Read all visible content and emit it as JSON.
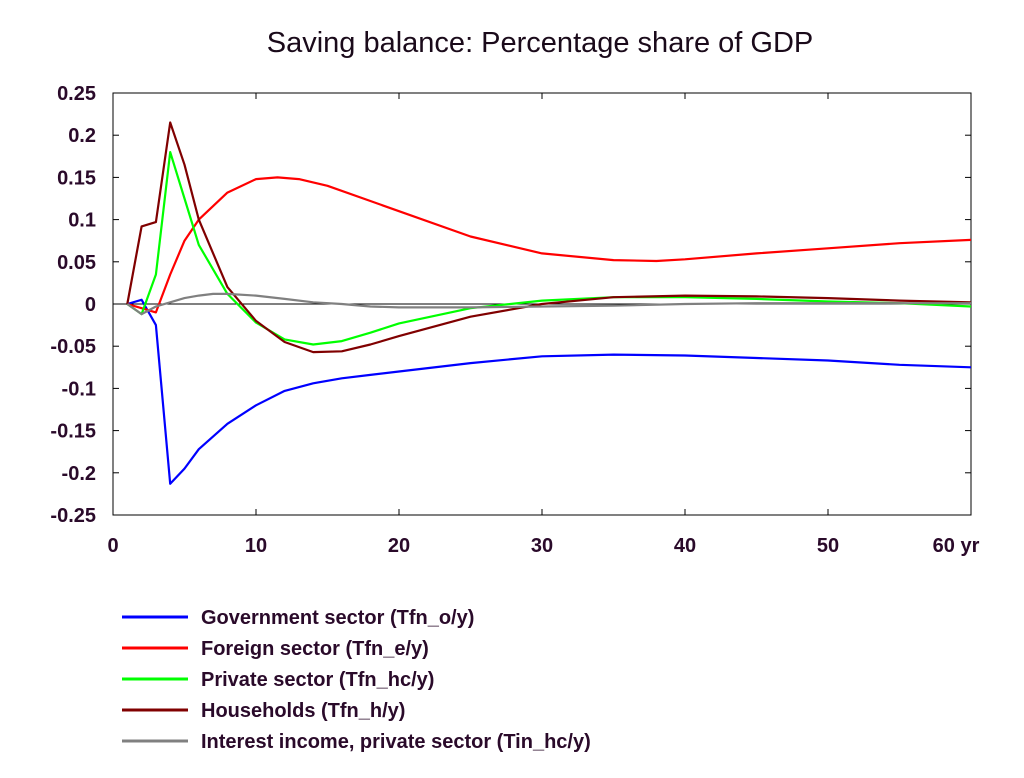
{
  "chart_data": {
    "type": "line",
    "title": "Saving balance: Percentage share of GDP",
    "xlabel": "",
    "ylabel": "",
    "x_unit_label": "yr",
    "xlim": [
      0,
      60
    ],
    "ylim": [
      -0.25,
      0.25
    ],
    "x_ticks": [
      0,
      10,
      20,
      30,
      40,
      50,
      60
    ],
    "x_tick_labels": [
      "0",
      "10",
      "20",
      "30",
      "40",
      "50",
      "60 yr"
    ],
    "y_ticks": [
      0.25,
      0.2,
      0.15,
      0.1,
      0.05,
      0,
      -0.05,
      -0.1,
      -0.15,
      -0.2,
      -0.25
    ],
    "y_tick_labels": [
      "0.25",
      "0.2",
      "0.15",
      "0.1",
      "0.05",
      "0",
      "-0.05",
      "-0.1",
      "-0.15",
      "-0.2",
      "-0.25"
    ],
    "grid": false,
    "zero_line": true,
    "legend_position": "bottom",
    "series": [
      {
        "name": "Government sector (Tfn_o/y)",
        "color": "#0000ff",
        "points": [
          [
            1,
            0
          ],
          [
            2,
            0.005
          ],
          [
            3,
            -0.025
          ],
          [
            4,
            -0.213
          ],
          [
            5,
            -0.195
          ],
          [
            6,
            -0.172
          ],
          [
            8,
            -0.142
          ],
          [
            10,
            -0.12
          ],
          [
            12,
            -0.103
          ],
          [
            14,
            -0.094
          ],
          [
            16,
            -0.088
          ],
          [
            18,
            -0.084
          ],
          [
            20,
            -0.08
          ],
          [
            25,
            -0.07
          ],
          [
            30,
            -0.062
          ],
          [
            35,
            -0.06
          ],
          [
            40,
            -0.061
          ],
          [
            45,
            -0.064
          ],
          [
            50,
            -0.067
          ],
          [
            55,
            -0.072
          ],
          [
            60,
            -0.075
          ]
        ]
      },
      {
        "name": "Foreign sector (Tfn_e/y)",
        "color": "#ff0000",
        "points": [
          [
            1,
            0
          ],
          [
            2,
            -0.005
          ],
          [
            3,
            -0.01
          ],
          [
            4,
            0.035
          ],
          [
            5,
            0.075
          ],
          [
            6,
            0.1
          ],
          [
            8,
            0.132
          ],
          [
            10,
            0.148
          ],
          [
            11.5,
            0.15
          ],
          [
            13,
            0.148
          ],
          [
            15,
            0.14
          ],
          [
            18,
            0.122
          ],
          [
            20,
            0.11
          ],
          [
            25,
            0.08
          ],
          [
            30,
            0.06
          ],
          [
            35,
            0.052
          ],
          [
            38,
            0.051
          ],
          [
            40,
            0.053
          ],
          [
            45,
            0.06
          ],
          [
            50,
            0.066
          ],
          [
            55,
            0.072
          ],
          [
            60,
            0.076
          ]
        ]
      },
      {
        "name": "Private sector (Tfn_hc/y)",
        "color": "#00ff00",
        "points": [
          [
            1,
            0
          ],
          [
            2,
            -0.012
          ],
          [
            3,
            0.035
          ],
          [
            4,
            0.18
          ],
          [
            5,
            0.125
          ],
          [
            6,
            0.07
          ],
          [
            8,
            0.012
          ],
          [
            10,
            -0.022
          ],
          [
            12,
            -0.042
          ],
          [
            14,
            -0.048
          ],
          [
            16,
            -0.044
          ],
          [
            18,
            -0.034
          ],
          [
            20,
            -0.023
          ],
          [
            25,
            -0.005
          ],
          [
            30,
            0.004
          ],
          [
            35,
            0.008
          ],
          [
            40,
            0.008
          ],
          [
            45,
            0.006
          ],
          [
            50,
            0.003
          ],
          [
            55,
            0.001
          ],
          [
            60,
            -0.003
          ]
        ]
      },
      {
        "name": "Households (Tfn_h/y)",
        "color": "#800000",
        "points": [
          [
            1,
            0
          ],
          [
            2,
            0.092
          ],
          [
            3,
            0.097
          ],
          [
            4,
            0.215
          ],
          [
            5,
            0.165
          ],
          [
            6,
            0.1
          ],
          [
            8,
            0.02
          ],
          [
            10,
            -0.02
          ],
          [
            12,
            -0.045
          ],
          [
            14,
            -0.057
          ],
          [
            16,
            -0.056
          ],
          [
            18,
            -0.048
          ],
          [
            20,
            -0.038
          ],
          [
            25,
            -0.015
          ],
          [
            30,
            0
          ],
          [
            35,
            0.008
          ],
          [
            40,
            0.01
          ],
          [
            45,
            0.009
          ],
          [
            50,
            0.007
          ],
          [
            55,
            0.004
          ],
          [
            60,
            0.002
          ]
        ]
      },
      {
        "name": "Interest income, private sector (Tin_hc/y)",
        "color": "#808080",
        "points": [
          [
            1,
            0
          ],
          [
            2,
            -0.012
          ],
          [
            3,
            -0.003
          ],
          [
            4,
            0.002
          ],
          [
            5,
            0.007
          ],
          [
            6,
            0.01
          ],
          [
            7,
            0.012
          ],
          [
            8,
            0.012
          ],
          [
            10,
            0.01
          ],
          [
            12,
            0.006
          ],
          [
            14,
            0.002
          ],
          [
            16,
            0
          ],
          [
            18,
            -0.003
          ],
          [
            20,
            -0.004
          ],
          [
            25,
            -0.004
          ],
          [
            30,
            -0.003
          ],
          [
            35,
            -0.002
          ],
          [
            40,
            0
          ],
          [
            45,
            0.001
          ],
          [
            50,
            0.001
          ],
          [
            55,
            0.001
          ],
          [
            60,
            0.001
          ]
        ]
      }
    ]
  }
}
